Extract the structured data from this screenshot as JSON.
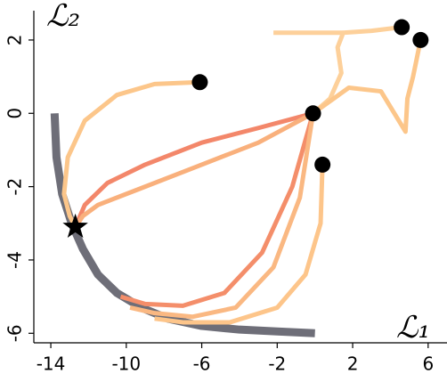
{
  "chart_data": {
    "type": "line",
    "xlabel": "ℒ₁",
    "ylabel": "ℒ₂",
    "xlim": [
      -14.9,
      7
    ],
    "ylim": [
      -6.26,
      2.8
    ],
    "xticks": [
      -14,
      -10,
      -6,
      -2,
      2,
      6
    ],
    "yticks": [
      -6,
      -4,
      -2,
      0,
      2
    ],
    "front": {
      "color": "#6e6e78",
      "x": [
        -13.8,
        -13.7,
        -13.4,
        -12.9,
        -12.3,
        -11.5,
        -10.5,
        -9.2,
        -7.8,
        -6.0,
        -4.0,
        -2.0,
        0.0
      ],
      "values": [
        0.0,
        -1.2,
        -2.2,
        -3.0,
        -3.7,
        -4.4,
        -4.9,
        -5.3,
        -5.6,
        -5.8,
        -5.9,
        -5.95,
        -6.0
      ]
    },
    "series": [
      {
        "color": "#fcc68a",
        "x": [
          -6.1,
          -8.5,
          -10.5,
          -12.2,
          -13.1,
          -13.3,
          -13.0,
          -12.7
        ],
        "values": [
          0.85,
          0.8,
          0.5,
          -0.2,
          -1.2,
          -2.2,
          -2.8,
          -3.1
        ]
      },
      {
        "color": "#f3876a",
        "x": [
          -0.1,
          -3,
          -6,
          -9,
          -11,
          -12.2,
          -12.7
        ],
        "values": [
          0,
          -0.4,
          -0.8,
          -1.4,
          -1.9,
          -2.5,
          -3.1
        ]
      },
      {
        "color": "#f9b07c",
        "x": [
          -0.1,
          -3,
          -6.5,
          -9.5,
          -11.5,
          -12.3,
          -12.7
        ],
        "values": [
          0,
          -0.8,
          -1.5,
          -2.1,
          -2.5,
          -2.8,
          -3.1
        ]
      },
      {
        "color": "#f48e6a",
        "x": [
          -0.1,
          -1.2,
          -2.8,
          -4.8,
          -7.0,
          -9.0,
          -10.3
        ],
        "values": [
          0,
          -2.0,
          -3.8,
          -4.9,
          -5.25,
          -5.2,
          -5.0
        ]
      },
      {
        "color": "#fab882",
        "x": [
          -0.1,
          -0.8,
          -2.2,
          -4.2,
          -6.5,
          -8.5,
          -9.8
        ],
        "values": [
          0,
          -2.3,
          -4.2,
          -5.3,
          -5.55,
          -5.45,
          -5.3
        ]
      },
      {
        "color": "#fdc58a",
        "x": [
          0.4,
          0.3,
          -0.5,
          -2.0,
          -4.5,
          -7.0,
          -8.5
        ],
        "values": [
          -1.4,
          -3.0,
          -4.4,
          -5.3,
          -5.7,
          -5.7,
          -5.6
        ]
      },
      {
        "color": "#fdd09a",
        "x": [
          4.6,
          3.0,
          1.5,
          1.2,
          1.4,
          0.8,
          -0.1
        ],
        "values": [
          2.35,
          2.25,
          2.2,
          1.8,
          1.1,
          0.4,
          0
        ]
      },
      {
        "color": "#fdd09a",
        "x": [
          1.5,
          0.0,
          -1.5,
          -2.2
        ],
        "values": [
          2.2,
          2.2,
          2.2,
          2.2
        ]
      },
      {
        "color": "#fcc68a",
        "x": [
          5.6,
          5.2,
          4.9,
          4.8,
          3.5,
          1.8,
          -0.1
        ],
        "values": [
          2.0,
          1.0,
          0.4,
          -0.5,
          0.6,
          0.7,
          0
        ]
      }
    ],
    "markers": {
      "color": "#000000",
      "x": [
        -6.1,
        -0.1,
        0.4,
        4.6,
        5.6
      ],
      "values": [
        0.85,
        0,
        -1.4,
        2.35,
        2.0
      ]
    },
    "star": {
      "color": "#000000",
      "x": -12.7,
      "y": -3.1
    }
  }
}
